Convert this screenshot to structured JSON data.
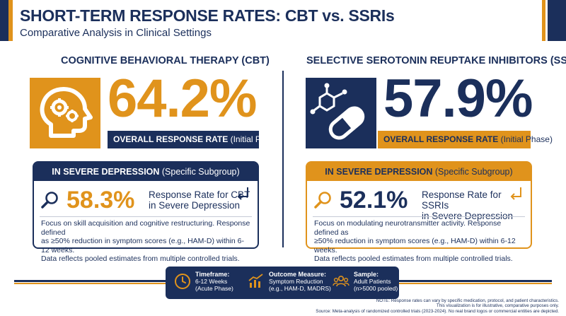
{
  "header": {
    "title": "SHORT-TERM RESPONSE RATES: CBT vs. SSRIs",
    "subtitle": "Comparative Analysis in Clinical Settings"
  },
  "cbt": {
    "heading": "COGNITIVE BEHAVIORAL THERAPY (CBT)",
    "icon": "head-gears-icon",
    "overall_value": "64.2%",
    "overall_label_bold": "OVERALL RESPONSE RATE",
    "overall_label_rest": " (Initial Phase)",
    "severe_head_bold": "IN SEVERE DEPRESSION",
    "severe_head_rest": " (Specific Subgroup)",
    "severe_value": "58.3%",
    "severe_line1": "Response Rate for CBT",
    "severe_line2": "in Severe Depression",
    "desc_line1": "Focus on skill acquisition and cognitive restructuring. Response defined",
    "desc_line2": "as ≥50% reduction in symptom scores (e.g., HAM-D) within 6-12 weeks.",
    "desc_line3": "Data reflects pooled estimates from multiple controlled trials."
  },
  "ssri": {
    "heading": "SELECTIVE SEROTONIN REUPTAKE INHIBITORS (SSRIs)",
    "icon": "molecule-capsule-icon",
    "overall_value": "57.9%",
    "overall_label_bold": "OVERALL RESPONSE RATE",
    "overall_label_rest": " (Initial Phase)",
    "severe_head_bold": "IN SEVERE DEPRESSION",
    "severe_head_rest": " (Specific Subgroup)",
    "severe_value": "52.1%",
    "severe_line1": "Response Rate for SSRIs",
    "severe_line2": "in Severe Depression",
    "desc_line1": "Focus on modulating neurotransmitter activity. Response defined as",
    "desc_line2": "≥50% reduction in symptom scores (e.g., HAM-D) within 6-12 weeks.",
    "desc_line3": "Data reflects pooled estimates from multiple controlled trials."
  },
  "footer": {
    "timeframe_label": "Timeframe:",
    "timeframe_l1": "6-12 Weeks",
    "timeframe_l2": "(Acute Phase)",
    "outcome_label": "Outcome Measure:",
    "outcome_l1": "Symptom Reduction",
    "outcome_l2": "(e.g., HAM-D, MADRS)",
    "sample_label": "Sample:",
    "sample_l1": "Adult Patients",
    "sample_l2": "(n>5000 pooled)"
  },
  "note": {
    "line1": "NOTE: Response rates can vary by specific medication, protocol, and patient characteristics.",
    "line2": "This visualization is for illustrative, comparative purposes only.",
    "line3": "Source: Meta-analysis of randomized controlled trials (2023-2024). No real brand logos or commercial entities are depicted."
  },
  "colors": {
    "navy": "#1b2f5b",
    "gold": "#e0931c"
  }
}
